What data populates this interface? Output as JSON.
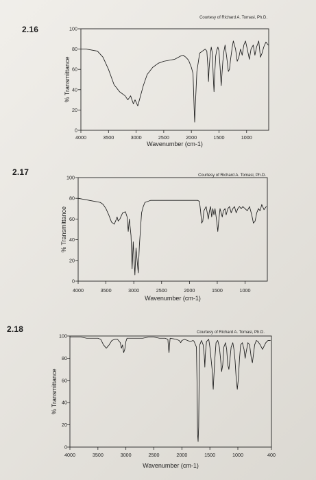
{
  "chart_data": [
    {
      "type": "line",
      "id": "2.16",
      "problem_number": "2.16",
      "credit": "Courtesy of Richard A. Tomasi, Ph.D.",
      "xlabel": "Wavenumber (cm-1)",
      "ylabel": "% Transmittance",
      "xlim": [
        4000,
        600
      ],
      "ylim": [
        0,
        100
      ],
      "x_ticks": [
        4000,
        3500,
        3000,
        2500,
        2000,
        1500,
        1000
      ],
      "y_ticks": [
        0,
        20,
        40,
        60,
        80,
        100
      ],
      "grid": false,
      "series": [
        {
          "points": [
            [
              4000,
              80
            ],
            [
              3900,
              80
            ],
            [
              3800,
              79
            ],
            [
              3700,
              78
            ],
            [
              3600,
              72
            ],
            [
              3500,
              60
            ],
            [
              3400,
              45
            ],
            [
              3300,
              38
            ],
            [
              3200,
              34
            ],
            [
              3150,
              30
            ],
            [
              3100,
              34
            ],
            [
              3050,
              26
            ],
            [
              3020,
              30
            ],
            [
              2970,
              24
            ],
            [
              2930,
              32
            ],
            [
              2870,
              44
            ],
            [
              2800,
              55
            ],
            [
              2700,
              62
            ],
            [
              2600,
              66
            ],
            [
              2500,
              68
            ],
            [
              2400,
              69
            ],
            [
              2300,
              70
            ],
            [
              2200,
              73
            ],
            [
              2150,
              74
            ],
            [
              2100,
              72
            ],
            [
              2050,
              69
            ],
            [
              2000,
              62
            ],
            [
              1970,
              56
            ],
            [
              1950,
              22
            ],
            [
              1940,
              8
            ],
            [
              1930,
              22
            ],
            [
              1900,
              58
            ],
            [
              1850,
              76
            ],
            [
              1800,
              78
            ],
            [
              1750,
              80
            ],
            [
              1720,
              78
            ],
            [
              1700,
              62
            ],
            [
              1690,
              48
            ],
            [
              1680,
              60
            ],
            [
              1660,
              74
            ],
            [
              1640,
              82
            ],
            [
              1620,
              76
            ],
            [
              1600,
              48
            ],
            [
              1590,
              38
            ],
            [
              1580,
              52
            ],
            [
              1560,
              73
            ],
            [
              1540,
              79
            ],
            [
              1520,
              82
            ],
            [
              1500,
              78
            ],
            [
              1480,
              62
            ],
            [
              1460,
              44
            ],
            [
              1450,
              52
            ],
            [
              1430,
              68
            ],
            [
              1410,
              78
            ],
            [
              1390,
              84
            ],
            [
              1360,
              72
            ],
            [
              1330,
              58
            ],
            [
              1310,
              60
            ],
            [
              1290,
              70
            ],
            [
              1260,
              82
            ],
            [
              1240,
              88
            ],
            [
              1200,
              80
            ],
            [
              1170,
              68
            ],
            [
              1140,
              72
            ],
            [
              1110,
              80
            ],
            [
              1080,
              74
            ],
            [
              1050,
              84
            ],
            [
              1020,
              88
            ],
            [
              980,
              78
            ],
            [
              950,
              70
            ],
            [
              920,
              80
            ],
            [
              880,
              84
            ],
            [
              850,
              74
            ],
            [
              820,
              82
            ],
            [
              780,
              88
            ],
            [
              750,
              72
            ],
            [
              720,
              76
            ],
            [
              690,
              82
            ],
            [
              650,
              87
            ],
            [
              610,
              84
            ]
          ]
        }
      ]
    },
    {
      "type": "line",
      "id": "2.17",
      "problem_number": "2.17",
      "credit": "Courtesy of Richard A. Tomasi, Ph.D.",
      "xlabel": "Wavenumber (cm-1)",
      "ylabel": "% Transmittance",
      "xlim": [
        4000,
        600
      ],
      "ylim": [
        0,
        100
      ],
      "x_ticks": [
        4000,
        3500,
        3000,
        2500,
        2000,
        1500,
        1000
      ],
      "y_ticks": [
        0,
        20,
        40,
        60,
        80,
        100
      ],
      "grid": false,
      "series": [
        {
          "points": [
            [
              4000,
              80
            ],
            [
              3900,
              79
            ],
            [
              3800,
              78
            ],
            [
              3700,
              77
            ],
            [
              3600,
              76
            ],
            [
              3550,
              74
            ],
            [
              3500,
              70
            ],
            [
              3450,
              64
            ],
            [
              3400,
              57
            ],
            [
              3350,
              55
            ],
            [
              3320,
              59
            ],
            [
              3300,
              62
            ],
            [
              3280,
              58
            ],
            [
              3250,
              60
            ],
            [
              3200,
              66
            ],
            [
              3150,
              67
            ],
            [
              3120,
              62
            ],
            [
              3100,
              48
            ],
            [
              3080,
              60
            ],
            [
              3050,
              44
            ],
            [
              3030,
              12
            ],
            [
              3010,
              38
            ],
            [
              3000,
              26
            ],
            [
              2980,
              6
            ],
            [
              2960,
              32
            ],
            [
              2940,
              20
            ],
            [
              2920,
              8
            ],
            [
              2900,
              34
            ],
            [
              2880,
              50
            ],
            [
              2860,
              66
            ],
            [
              2830,
              72
            ],
            [
              2800,
              76
            ],
            [
              2750,
              77
            ],
            [
              2700,
              78
            ],
            [
              2600,
              78
            ],
            [
              2500,
              78
            ],
            [
              2400,
              78
            ],
            [
              2300,
              78
            ],
            [
              2200,
              78
            ],
            [
              2100,
              78
            ],
            [
              2000,
              78
            ],
            [
              1900,
              78
            ],
            [
              1850,
              78
            ],
            [
              1820,
              77
            ],
            [
              1800,
              68
            ],
            [
              1780,
              56
            ],
            [
              1760,
              58
            ],
            [
              1740,
              68
            ],
            [
              1700,
              72
            ],
            [
              1680,
              66
            ],
            [
              1660,
              60
            ],
            [
              1640,
              68
            ],
            [
              1620,
              72
            ],
            [
              1600,
              62
            ],
            [
              1580,
              70
            ],
            [
              1560,
              64
            ],
            [
              1540,
              70
            ],
            [
              1510,
              58
            ],
            [
              1490,
              48
            ],
            [
              1470,
              60
            ],
            [
              1450,
              70
            ],
            [
              1430,
              66
            ],
            [
              1410,
              62
            ],
            [
              1390,
              68
            ],
            [
              1360,
              70
            ],
            [
              1340,
              64
            ],
            [
              1310,
              70
            ],
            [
              1280,
              72
            ],
            [
              1250,
              66
            ],
            [
              1220,
              70
            ],
            [
              1190,
              72
            ],
            [
              1160,
              66
            ],
            [
              1130,
              70
            ],
            [
              1100,
              72
            ],
            [
              1070,
              70
            ],
            [
              1040,
              72
            ],
            [
              1000,
              70
            ],
            [
              960,
              68
            ],
            [
              920,
              72
            ],
            [
              880,
              64
            ],
            [
              850,
              56
            ],
            [
              820,
              58
            ],
            [
              790,
              66
            ],
            [
              760,
              70
            ],
            [
              730,
              68
            ],
            [
              700,
              74
            ],
            [
              660,
              69
            ],
            [
              620,
              72
            ]
          ]
        }
      ]
    },
    {
      "type": "line",
      "id": "2.18",
      "problem_number": "2.18",
      "credit": "Courtesy of Richard A. Tomasi, Ph.D.",
      "xlabel": "Wavenumber (cm-1)",
      "ylabel": "% Transmittance",
      "xlim": [
        4000,
        400
      ],
      "ylim": [
        0,
        100
      ],
      "x_ticks": [
        4000,
        3500,
        3000,
        2500,
        2000,
        1500,
        1000,
        400
      ],
      "y_ticks": [
        0,
        20,
        40,
        60,
        80,
        100
      ],
      "grid": false,
      "series": [
        {
          "points": [
            [
              4000,
              99
            ],
            [
              3900,
              99
            ],
            [
              3800,
              99
            ],
            [
              3700,
              98
            ],
            [
              3600,
              98
            ],
            [
              3500,
              98
            ],
            [
              3450,
              97
            ],
            [
              3400,
              92
            ],
            [
              3350,
              89
            ],
            [
              3300,
              92
            ],
            [
              3250,
              96
            ],
            [
              3200,
              97
            ],
            [
              3150,
              97
            ],
            [
              3100,
              94
            ],
            [
              3080,
              89
            ],
            [
              3060,
              92
            ],
            [
              3040,
              85
            ],
            [
              3020,
              88
            ],
            [
              3000,
              95
            ],
            [
              2980,
              98
            ],
            [
              2900,
              98
            ],
            [
              2800,
              98
            ],
            [
              2700,
              98
            ],
            [
              2600,
              99
            ],
            [
              2500,
              99
            ],
            [
              2400,
              98
            ],
            [
              2300,
              98
            ],
            [
              2250,
              97
            ],
            [
              2240,
              90
            ],
            [
              2230,
              85
            ],
            [
              2220,
              92
            ],
            [
              2210,
              98
            ],
            [
              2100,
              97
            ],
            [
              2050,
              96
            ],
            [
              2020,
              94
            ],
            [
              2000,
              96
            ],
            [
              1950,
              97
            ],
            [
              1900,
              96
            ],
            [
              1850,
              95
            ],
            [
              1800,
              96
            ],
            [
              1780,
              95
            ],
            [
              1740,
              90
            ],
            [
              1730,
              60
            ],
            [
              1720,
              12
            ],
            [
              1710,
              5
            ],
            [
              1700,
              18
            ],
            [
              1690,
              70
            ],
            [
              1680,
              92
            ],
            [
              1650,
              96
            ],
            [
              1620,
              92
            ],
            [
              1600,
              82
            ],
            [
              1590,
              72
            ],
            [
              1580,
              84
            ],
            [
              1560,
              95
            ],
            [
              1520,
              97
            ],
            [
              1500,
              90
            ],
            [
              1480,
              80
            ],
            [
              1460,
              70
            ],
            [
              1450,
              60
            ],
            [
              1440,
              52
            ],
            [
              1430,
              62
            ],
            [
              1410,
              80
            ],
            [
              1390,
              94
            ],
            [
              1360,
              96
            ],
            [
              1330,
              90
            ],
            [
              1310,
              80
            ],
            [
              1290,
              68
            ],
            [
              1270,
              74
            ],
            [
              1250,
              90
            ],
            [
              1220,
              94
            ],
            [
              1200,
              88
            ],
            [
              1180,
              74
            ],
            [
              1160,
              70
            ],
            [
              1140,
              80
            ],
            [
              1120,
              90
            ],
            [
              1090,
              94
            ],
            [
              1070,
              88
            ],
            [
              1050,
              78
            ],
            [
              1030,
              62
            ],
            [
              1010,
              52
            ],
            [
              990,
              62
            ],
            [
              970,
              80
            ],
            [
              950,
              92
            ],
            [
              920,
              94
            ],
            [
              890,
              88
            ],
            [
              870,
              80
            ],
            [
              850,
              86
            ],
            [
              820,
              94
            ],
            [
              790,
              92
            ],
            [
              760,
              80
            ],
            [
              740,
              76
            ],
            [
              720,
              84
            ],
            [
              700,
              92
            ],
            [
              670,
              96
            ],
            [
              640,
              95
            ],
            [
              600,
              92
            ],
            [
              560,
              88
            ],
            [
              540,
              90
            ],
            [
              500,
              94
            ],
            [
              460,
              96
            ],
            [
              420,
              96
            ]
          ]
        }
      ]
    }
  ]
}
